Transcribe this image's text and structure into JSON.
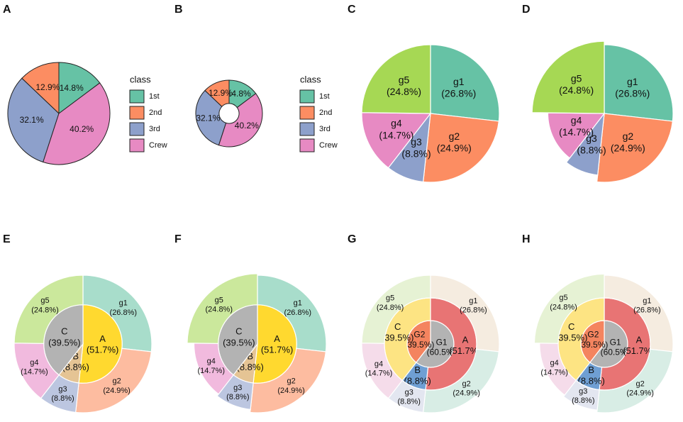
{
  "chart_data": [
    {
      "type": "pie",
      "tag": "A",
      "legend_title": "class",
      "direction": "counterclockwise",
      "rings": [
        {
          "categories": [
            "1st",
            "2nd",
            "3rd",
            "Crew"
          ],
          "values": [
            14.8,
            12.9,
            32.1,
            40.2
          ],
          "value_labels": [
            "14.8%",
            "12.9%",
            "32.1%",
            "40.2%"
          ],
          "colors": [
            "#66c2a5",
            "#fc8d62",
            "#8da0cb",
            "#e78ac3"
          ]
        }
      ]
    },
    {
      "type": "donut",
      "tag": "B",
      "legend_title": "class",
      "direction": "counterclockwise",
      "rings": [
        {
          "categories": [
            "1st",
            "2nd",
            "3rd",
            "Crew"
          ],
          "values": [
            14.8,
            12.9,
            32.1,
            40.2
          ],
          "value_labels": [
            "14.8%",
            "12.9%",
            "32.1%",
            "40.2%"
          ],
          "colors": [
            "#66c2a5",
            "#fc8d62",
            "#8da0cb",
            "#e78ac3"
          ]
        }
      ]
    },
    {
      "type": "pie",
      "tag": "C",
      "direction": "clockwise",
      "rings": [
        {
          "categories": [
            "g1",
            "g2",
            "g3",
            "g4",
            "g5"
          ],
          "values": [
            26.8,
            24.9,
            8.8,
            14.7,
            24.8
          ],
          "value_labels": [
            "(26.8%)",
            "(24.9%)",
            "(8.8%)",
            "(14.7%)",
            "(24.8%)"
          ],
          "colors": [
            "#66c2a5",
            "#fc8d62",
            "#8da0cb",
            "#e78ac3",
            "#a6d854"
          ]
        }
      ]
    },
    {
      "type": "rose",
      "tag": "D",
      "direction": "clockwise",
      "rings": [
        {
          "categories": [
            "g1",
            "g2",
            "g3",
            "g4",
            "g5"
          ],
          "values": [
            26.8,
            24.9,
            8.8,
            14.7,
            24.8
          ],
          "value_labels": [
            "(26.8%)",
            "(24.9%)",
            "(8.8%)",
            "(14.7%)",
            "(24.8%)"
          ],
          "colors": [
            "#66c2a5",
            "#fc8d62",
            "#8da0cb",
            "#e78ac3",
            "#a6d854"
          ]
        }
      ]
    },
    {
      "type": "sunburst",
      "tag": "E",
      "direction": "clockwise",
      "rings": [
        {
          "categories": [
            "A",
            "B",
            "C"
          ],
          "values": [
            51.7,
            8.8,
            39.5
          ],
          "value_labels": [
            "(51.7%)",
            "(8.8%)",
            "(39.5%)"
          ],
          "colors": [
            "#ffd92f",
            "#e5c494",
            "#b3b3b3"
          ]
        },
        {
          "categories": [
            "g1",
            "g2",
            "g3",
            "g4",
            "g5"
          ],
          "values": [
            26.8,
            24.9,
            8.8,
            14.7,
            24.8
          ],
          "value_labels": [
            "(26.8%)",
            "(24.9%)",
            "(8.8%)",
            "(14.7%)",
            "(24.8%)"
          ],
          "colors": [
            "#a8ddcb",
            "#fdbca0",
            "#bcc6e0",
            "#f1bade",
            "#cbe89c"
          ]
        }
      ]
    },
    {
      "type": "rose",
      "tag": "F",
      "direction": "clockwise",
      "rings": [
        {
          "categories": [
            "A",
            "B",
            "C"
          ],
          "values": [
            51.7,
            8.8,
            39.5
          ],
          "value_labels": [
            "(51.7%)",
            "(8.8%)",
            "(39.5%)"
          ],
          "colors": [
            "#ffd92f",
            "#e5c494",
            "#b3b3b3"
          ]
        },
        {
          "categories": [
            "g1",
            "g2",
            "g3",
            "g4",
            "g5"
          ],
          "values": [
            26.8,
            24.9,
            8.8,
            14.7,
            24.8
          ],
          "value_labels": [
            "(26.8%)",
            "(24.9%)",
            "(8.8%)",
            "(14.7%)",
            "(24.8%)"
          ],
          "colors": [
            "#a8ddcb",
            "#fdbca0",
            "#bcc6e0",
            "#f1bade",
            "#cbe89c"
          ]
        }
      ]
    },
    {
      "type": "sunburst",
      "tag": "G",
      "direction": "clockwise",
      "rings": [
        {
          "categories": [
            "G1",
            "G2"
          ],
          "values": [
            60.5,
            39.5
          ],
          "value_labels": [
            "(60.5%)",
            "(39.5%)"
          ],
          "colors": [
            "#b3b3b3",
            "#f4845f"
          ]
        },
        {
          "categories": [
            "A",
            "B",
            "C"
          ],
          "values": [
            51.7,
            8.8,
            39.5
          ],
          "value_labels": [
            "(51.7%)",
            "(8.8%)",
            "(39.5%)"
          ],
          "colors": [
            "#e87474",
            "#6f9fd3",
            "#fde483"
          ]
        },
        {
          "categories": [
            "g1",
            "g2",
            "g3",
            "g4",
            "g5"
          ],
          "values": [
            26.8,
            24.9,
            8.8,
            14.7,
            24.8
          ],
          "value_labels": [
            "(26.8%)",
            "(24.9%)",
            "(8.8%)",
            "(14.7%)",
            "(24.8%)"
          ],
          "colors": [
            "#f5ece0",
            "#d8ede5",
            "#e3e6f0",
            "#f5dcea",
            "#e6f2d4"
          ]
        }
      ]
    },
    {
      "type": "rose",
      "tag": "H",
      "direction": "clockwise",
      "rings": [
        {
          "categories": [
            "G1",
            "G2"
          ],
          "values": [
            60.5,
            39.5
          ],
          "value_labels": [
            "(60.5%)",
            "(39.5%)"
          ],
          "colors": [
            "#b3b3b3",
            "#f4845f"
          ]
        },
        {
          "categories": [
            "A",
            "B",
            "C"
          ],
          "values": [
            51.7,
            8.8,
            39.5
          ],
          "value_labels": [
            "(51.7%)",
            "(8.8%)",
            "(39.5%)"
          ],
          "colors": [
            "#e87474",
            "#6f9fd3",
            "#fde483"
          ]
        },
        {
          "categories": [
            "g1",
            "g2",
            "g3",
            "g4",
            "g5"
          ],
          "values": [
            26.8,
            24.9,
            8.8,
            14.7,
            24.8
          ],
          "value_labels": [
            "(26.8%)",
            "(24.9%)",
            "(8.8%)",
            "(14.7%)",
            "(24.8%)"
          ],
          "colors": [
            "#f5ece0",
            "#d8ede5",
            "#e3e6f0",
            "#f5dcea",
            "#e6f2d4"
          ]
        }
      ]
    }
  ]
}
